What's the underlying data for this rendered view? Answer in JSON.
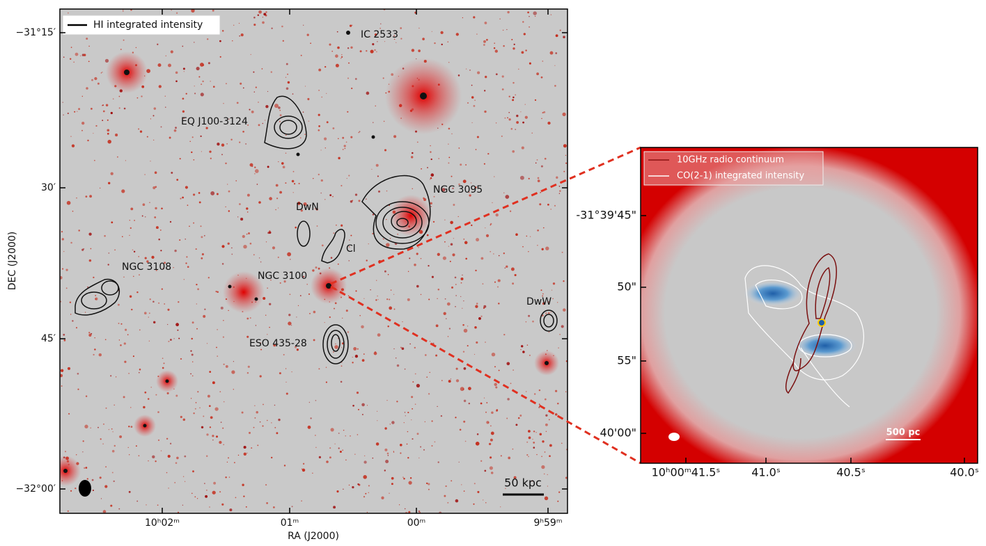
{
  "left_panel": {
    "legend": "HI integrated intensity",
    "x_axis_label": "RA (J2000)",
    "y_axis_label": "DEC (J2000)",
    "x_tick_labels": [
      "10ʰ02ᵐ",
      "01ᵐ",
      "00ᵐ",
      "9ʰ59ᵐ"
    ],
    "y_tick_labels": [
      "−31°15′",
      "30′",
      "45′",
      "−32°00′"
    ],
    "source_labels": [
      "IC 2533",
      "EQ J100-3124",
      "NGC 3095",
      "DwN",
      "Cl",
      "NGC 3108",
      "NGC 3100",
      "DwW",
      "ESO 435-28"
    ],
    "scale_bar": "50 kpc"
  },
  "right_panel": {
    "legend": [
      "10GHz radio continuum",
      "CO(2-1) integrated intensity"
    ],
    "x_tick_labels": [
      "10ʰ00ᵐ41.5ˢ",
      "41.0ˢ",
      "40.5ˢ",
      "40.0ˢ"
    ],
    "y_tick_labels": [
      "-31°39'45\"",
      "50\"",
      "55\"",
      "40'00\""
    ],
    "scale_bar": "500 pc"
  }
}
